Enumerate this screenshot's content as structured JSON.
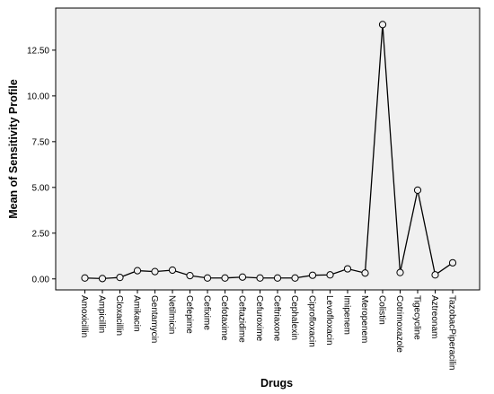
{
  "chart_data": {
    "type": "line",
    "xlabel": "Drugs",
    "ylabel": "Mean of Sensitivity Profile",
    "ylim": [
      -0.6,
      14.8
    ],
    "yticks": [
      0,
      2.5,
      5,
      7.5,
      10,
      12.5
    ],
    "ytick_labels": [
      "0.00",
      "2.50",
      "5.00",
      "7.50",
      "10.00",
      "12.50"
    ],
    "grid": false,
    "categories": [
      "Amoxicillin",
      "Ampicillin",
      "Cloxacillin",
      "Amikacin",
      "Gentamycin",
      "Netilmicin",
      "Cefepime",
      "Cefixime",
      "Cefotaxime",
      "Ceftazidime",
      "Cefuroxime",
      "Ceftriaxone",
      "Cephalexin",
      "Ciprofloxacin",
      "Levofloxacin",
      "Imipenem",
      "Meropenem",
      "Colistin",
      "Cotrimoxazole",
      "Tigecycline",
      "Aztreonam",
      "TazobacPiperacilin"
    ],
    "series": [
      {
        "values": [
          0.05,
          0.02,
          0.08,
          0.45,
          0.4,
          0.48,
          0.18,
          0.05,
          0.05,
          0.1,
          0.05,
          0.05,
          0.05,
          0.2,
          0.22,
          0.55,
          0.32,
          13.9,
          0.35,
          4.85,
          0.22,
          0.88
        ]
      }
    ],
    "colors": {
      "line": "#000000",
      "plot_background": "#f0f0f0",
      "marker_fill": "#f0f0f0"
    }
  }
}
